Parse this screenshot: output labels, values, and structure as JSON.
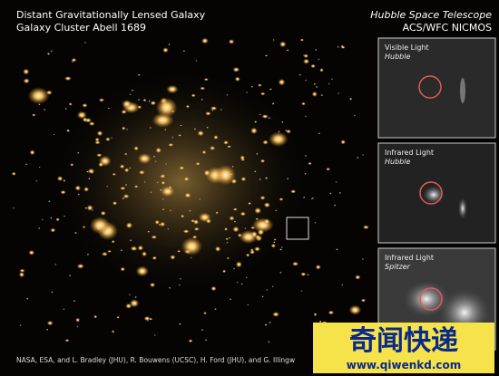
{
  "header": {
    "title": "Distant Gravitationally Lensed Galaxy",
    "subtitle": "Galaxy Cluster Abell 1689",
    "telescope": "Hubble Space Telescope",
    "instruments": "ACS/WFC NICMOS"
  },
  "panels": [
    {
      "label": "Visible Light",
      "source": "Hubble"
    },
    {
      "label": "Infrared Light",
      "source": "Hubble"
    },
    {
      "label": "Infrared Light",
      "source": "Spitzer"
    }
  ],
  "credit": "NASA, ESA, and L. Bradley (JHU), R. Bouwens (UCSC), H. Ford (JHU), and G. Illingw",
  "watermark": {
    "title": "奇闻快递",
    "url": "www.qiwenkd.com"
  }
}
